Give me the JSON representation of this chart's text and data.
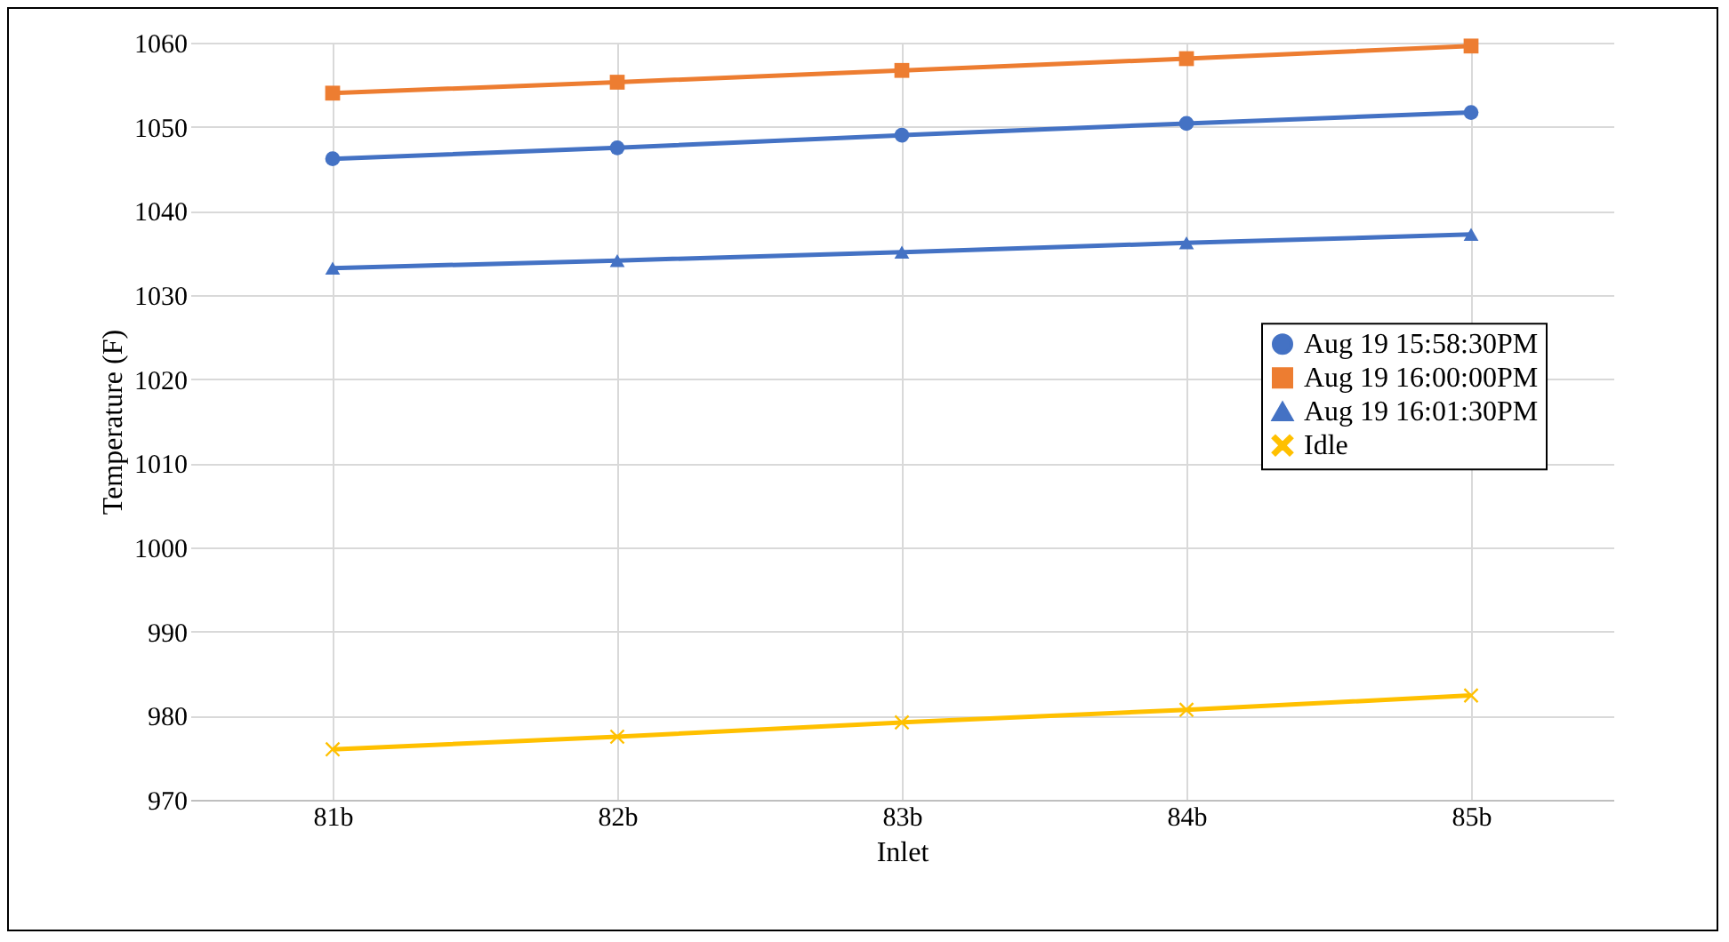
{
  "chart_data": {
    "type": "line",
    "xlabel": "Inlet",
    "ylabel": "Temperature (F)",
    "categories": [
      "81b",
      "82b",
      "83b",
      "84b",
      "85b"
    ],
    "series": [
      {
        "name": "Aug 19 15:58:30PM",
        "color": "#4472c4",
        "marker": "circle",
        "values": [
          1046.2,
          1047.5,
          1049,
          1050.4,
          1051.7
        ]
      },
      {
        "name": "Aug 19 16:00:00PM",
        "color": "#ed7d31",
        "marker": "square",
        "values": [
          1054,
          1055.3,
          1056.7,
          1058.1,
          1059.6
        ]
      },
      {
        "name": "Aug 19 16:01:30PM",
        "color": "#4472c4",
        "marker": "triangle",
        "values": [
          1033.2,
          1034.1,
          1035.1,
          1036.2,
          1037.2
        ]
      },
      {
        "name": "Idle",
        "color": "#ffc000",
        "marker": "cross",
        "values": [
          976,
          977.5,
          979.2,
          980.7,
          982.4
        ]
      }
    ],
    "ylim": [
      970,
      1060
    ],
    "yticks": [
      970,
      980,
      990,
      1000,
      1010,
      1020,
      1030,
      1040,
      1050,
      1060
    ],
    "grid": true,
    "legend": "right",
    "line_style": "solid"
  }
}
